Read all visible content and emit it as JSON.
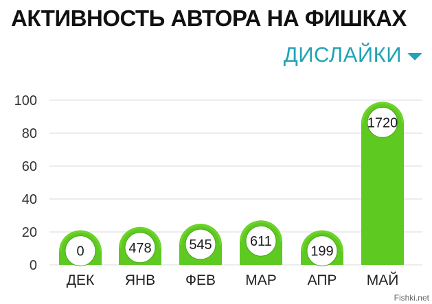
{
  "title": "АКТИВНОСТЬ АВТОРА НА ФИШКАХ",
  "dropdown": {
    "label": "ДИСЛАЙКИ",
    "icon": "triangle-down-icon"
  },
  "watermark": "Fishki.net",
  "colors": {
    "bar": "#5ec921",
    "bar_top": "#6fd42a",
    "accent": "#21a3b5",
    "grid": "#d8d8d8"
  },
  "chart_data": {
    "type": "bar",
    "categories": [
      "ДЕК",
      "ЯНВ",
      "ФЕВ",
      "МАР",
      "АПР",
      "МАЙ"
    ],
    "values": [
      21,
      23,
      25,
      27,
      21,
      99
    ],
    "data_labels": [
      "0",
      "478",
      "545",
      "611",
      "199",
      "1720"
    ],
    "y_ticks": [
      0,
      20,
      40,
      60,
      80,
      100
    ],
    "ylim": [
      0,
      100
    ],
    "grid": true,
    "legend": "none"
  }
}
